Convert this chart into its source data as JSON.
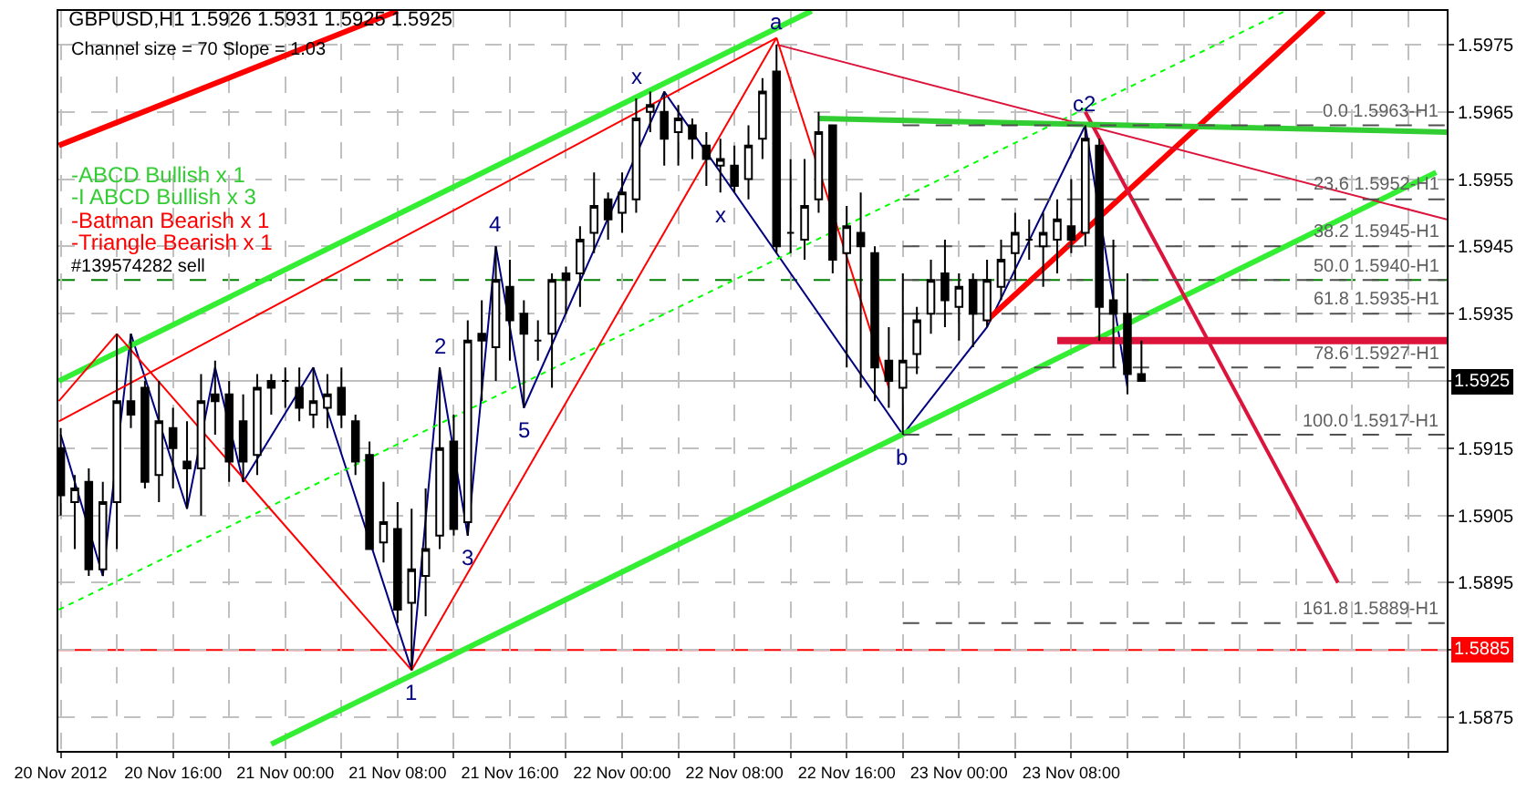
{
  "chart_data": {
    "type": "candlestick",
    "title": "GBPUSD,H1 1.5926 1.5931 1.5925 1.5925",
    "subtitle": "Channel size = 70 Slope = 1.03",
    "x": [
      "2012-11-20T08:00",
      "2012-11-20T09:00",
      "2012-11-20T10:00",
      "2012-11-20T11:00",
      "2012-11-20T12:00",
      "2012-11-20T13:00",
      "2012-11-20T14:00",
      "2012-11-20T15:00",
      "2012-11-20T16:00",
      "2012-11-20T17:00",
      "2012-11-20T18:00",
      "2012-11-20T19:00",
      "2012-11-20T20:00",
      "2012-11-20T21:00",
      "2012-11-20T22:00",
      "2012-11-20T23:00",
      "2012-11-21T00:00",
      "2012-11-21T01:00",
      "2012-11-21T02:00",
      "2012-11-21T03:00",
      "2012-11-21T04:00",
      "2012-11-21T05:00",
      "2012-11-21T06:00",
      "2012-11-21T07:00",
      "2012-11-21T08:00",
      "2012-11-21T09:00",
      "2012-11-21T10:00",
      "2012-11-21T11:00",
      "2012-11-21T12:00",
      "2012-11-21T13:00",
      "2012-11-21T14:00",
      "2012-11-21T15:00",
      "2012-11-21T16:00",
      "2012-11-21T17:00",
      "2012-11-21T18:00",
      "2012-11-21T19:00",
      "2012-11-21T20:00",
      "2012-11-21T21:00",
      "2012-11-21T22:00",
      "2012-11-21T23:00",
      "2012-11-22T00:00",
      "2012-11-22T01:00",
      "2012-11-22T02:00",
      "2012-11-22T03:00",
      "2012-11-22T04:00",
      "2012-11-22T05:00",
      "2012-11-22T06:00",
      "2012-11-22T07:00",
      "2012-11-22T08:00",
      "2012-11-22T09:00",
      "2012-11-22T10:00",
      "2012-11-22T11:00",
      "2012-11-22T12:00",
      "2012-11-22T13:00",
      "2012-11-22T14:00",
      "2012-11-22T15:00",
      "2012-11-22T16:00",
      "2012-11-22T17:00",
      "2012-11-22T18:00",
      "2012-11-22T19:00",
      "2012-11-22T20:00",
      "2012-11-22T21:00",
      "2012-11-22T22:00",
      "2012-11-22T23:00",
      "2012-11-23T00:00",
      "2012-11-23T01:00",
      "2012-11-23T02:00",
      "2012-11-23T03:00",
      "2012-11-23T04:00",
      "2012-11-23T05:00",
      "2012-11-23T06:00",
      "2012-11-23T07:00",
      "2012-11-23T08:00",
      "2012-11-23T09:00",
      "2012-11-23T10:00",
      "2012-11-23T11:00",
      "2012-11-23T12:00",
      "2012-11-23T13:00"
    ],
    "ohlc": [
      [
        1.5915,
        1.5918,
        1.5905,
        1.5908
      ],
      [
        1.5907,
        1.5911,
        1.59,
        1.5909
      ],
      [
        1.591,
        1.5912,
        1.5896,
        1.5897
      ],
      [
        1.5897,
        1.591,
        1.5896,
        1.5907
      ],
      [
        1.5907,
        1.5932,
        1.59,
        1.5922
      ],
      [
        1.5922,
        1.5932,
        1.5918,
        1.592
      ],
      [
        1.5924,
        1.5925,
        1.5909,
        1.591
      ],
      [
        1.5911,
        1.5925,
        1.5907,
        1.5919
      ],
      [
        1.5918,
        1.5921,
        1.5909,
        1.5915
      ],
      [
        1.5913,
        1.5919,
        1.5906,
        1.5912
      ],
      [
        1.5912,
        1.5926,
        1.5905,
        1.5922
      ],
      [
        1.5923,
        1.5928,
        1.5917,
        1.5922
      ],
      [
        1.5923,
        1.5925,
        1.591,
        1.5913
      ],
      [
        1.5919,
        1.5923,
        1.591,
        1.5913
      ],
      [
        1.5914,
        1.5926,
        1.5911,
        1.5924
      ],
      [
        1.5925,
        1.5926,
        1.592,
        1.5924
      ],
      [
        1.5925,
        1.5927,
        1.5921,
        1.5925
      ],
      [
        1.5924,
        1.5927,
        1.5919,
        1.5921
      ],
      [
        1.592,
        1.5927,
        1.5918,
        1.5922
      ],
      [
        1.5921,
        1.5926,
        1.5918,
        1.5923
      ],
      [
        1.5924,
        1.5927,
        1.5918,
        1.592
      ],
      [
        1.5919,
        1.592,
        1.5911,
        1.5913
      ],
      [
        1.5914,
        1.5916,
        1.59,
        1.59
      ],
      [
        1.5901,
        1.591,
        1.5898,
        1.5904
      ],
      [
        1.5903,
        1.5907,
        1.5889,
        1.5891
      ],
      [
        1.5892,
        1.5906,
        1.5882,
        1.5897
      ],
      [
        1.5896,
        1.5909,
        1.589,
        1.59
      ],
      [
        1.5902,
        1.5927,
        1.59,
        1.5915
      ],
      [
        1.5916,
        1.592,
        1.5902,
        1.5903
      ],
      [
        1.5904,
        1.5934,
        1.5902,
        1.5931
      ],
      [
        1.5932,
        1.5937,
        1.5922,
        1.5931
      ],
      [
        1.593,
        1.5945,
        1.5925,
        1.594
      ],
      [
        1.5939,
        1.5943,
        1.5928,
        1.5934
      ],
      [
        1.5935,
        1.5937,
        1.5921,
        1.5932
      ],
      [
        1.5931,
        1.5934,
        1.5928,
        1.5931
      ],
      [
        1.5932,
        1.5941,
        1.5924,
        1.594
      ],
      [
        1.5941,
        1.5942,
        1.5935,
        1.594
      ],
      [
        1.5941,
        1.5948,
        1.5936,
        1.5946
      ],
      [
        1.5947,
        1.5956,
        1.5944,
        1.5951
      ],
      [
        1.5952,
        1.5953,
        1.5946,
        1.5949
      ],
      [
        1.595,
        1.5956,
        1.5947,
        1.5953
      ],
      [
        1.5952,
        1.5967,
        1.595,
        1.5964
      ],
      [
        1.5965,
        1.5968,
        1.5962,
        1.5966
      ],
      [
        1.5965,
        1.5968,
        1.5957,
        1.5961
      ],
      [
        1.5962,
        1.5966,
        1.5957,
        1.5964
      ],
      [
        1.5963,
        1.5964,
        1.5958,
        1.5961
      ],
      [
        1.596,
        1.5962,
        1.5954,
        1.5958
      ],
      [
        1.5957,
        1.5961,
        1.5953,
        1.5958
      ],
      [
        1.5957,
        1.596,
        1.5953,
        1.5954
      ],
      [
        1.5955,
        1.5963,
        1.5952,
        1.596
      ],
      [
        1.5961,
        1.597,
        1.5958,
        1.5968
      ],
      [
        1.5971,
        1.5975,
        1.5944,
        1.5945
      ],
      [
        1.5947,
        1.5958,
        1.5944,
        1.5947
      ],
      [
        1.5946,
        1.5958,
        1.5943,
        1.5951
      ],
      [
        1.5952,
        1.5965,
        1.595,
        1.5962
      ],
      [
        1.5963,
        1.5963,
        1.5941,
        1.5943
      ],
      [
        1.5944,
        1.5951,
        1.5927,
        1.5948
      ],
      [
        1.5947,
        1.5953,
        1.5924,
        1.5945
      ],
      [
        1.5944,
        1.5945,
        1.5922,
        1.5927
      ],
      [
        1.5928,
        1.5933,
        1.5921,
        1.5925
      ],
      [
        1.5924,
        1.5941,
        1.5917,
        1.5928
      ],
      [
        1.5929,
        1.5936,
        1.5926,
        1.5934
      ],
      [
        1.5935,
        1.5943,
        1.5932,
        1.594
      ],
      [
        1.5941,
        1.5946,
        1.5933,
        1.5937
      ],
      [
        1.5936,
        1.5941,
        1.5931,
        1.5939
      ],
      [
        1.594,
        1.5941,
        1.593,
        1.5935
      ],
      [
        1.5934,
        1.5943,
        1.5933,
        1.594
      ],
      [
        1.5939,
        1.5946,
        1.5937,
        1.5943
      ],
      [
        1.5944,
        1.595,
        1.594,
        1.5947
      ],
      [
        1.5946,
        1.5949,
        1.5943,
        1.5946
      ],
      [
        1.5945,
        1.595,
        1.5939,
        1.5947
      ],
      [
        1.5946,
        1.5952,
        1.5941,
        1.5949
      ],
      [
        1.5948,
        1.5955,
        1.5944,
        1.5946
      ],
      [
        1.5947,
        1.5963,
        1.5945,
        1.5961
      ],
      [
        1.596,
        1.5961,
        1.5931,
        1.5936
      ],
      [
        1.5937,
        1.5946,
        1.5927,
        1.5935
      ],
      [
        1.5935,
        1.5941,
        1.5923,
        1.5926
      ],
      [
        1.5926,
        1.5931,
        1.5925,
        1.5925
      ]
    ],
    "series": [
      {
        "type": "line",
        "color": "#000080",
        "x": [
          "2012-11-20T08:00",
          "2012-11-20T11:00",
          "2012-11-20T13:00",
          "2012-11-20T17:00",
          "2012-11-20T19:00",
          "2012-11-20T21:00",
          "2012-11-21T02:00",
          "2012-11-21T09:00",
          "2012-11-21T11:00",
          "2012-11-21T13:00",
          "2012-11-21T15:00",
          "2012-11-21T17:00",
          "2012-11-22T03:00",
          "2012-11-22T20:00",
          "2012-11-23T02:00",
          "2012-11-23T09:00",
          "2012-11-23T12:00"
        ],
        "values": [
          1.5917,
          1.5896,
          1.5932,
          1.5906,
          1.5927,
          1.591,
          1.5927,
          1.5882,
          1.5927,
          1.5902,
          1.5945,
          1.5921,
          1.5968,
          1.5917,
          1.5933,
          1.5963,
          1.5924
        ]
      },
      {
        "type": "line",
        "color": "#33ee33",
        "x": [
          "2012-11-20T07:52",
          "2012-11-22T13:30"
        ],
        "values": [
          1.5925,
          1.598
        ]
      },
      {
        "type": "line",
        "color": "#33ee33",
        "x": [
          "2012-11-20T23:00",
          "2012-11-24T10:00"
        ],
        "values": [
          1.5871,
          1.5956
        ]
      },
      {
        "type": "line",
        "color": "#00ff00",
        "line_style": "dotted",
        "x": [
          "2012-11-20T07:52",
          "2012-11-23T23:15"
        ],
        "values": [
          1.5891,
          1.598
        ]
      },
      {
        "type": "line",
        "color": "#ff0000",
        "x": [
          "2012-11-20T07:52",
          "2012-11-21T08:00"
        ],
        "values": [
          1.596,
          1.598
        ]
      },
      {
        "type": "line",
        "color": "#ff0000",
        "x": [
          "2012-11-23T02:00",
          "2012-11-24T02:00"
        ],
        "values": [
          1.5934,
          1.598
        ]
      },
      {
        "type": "line",
        "color": "#dc143c",
        "x": [
          "2012-11-23T07:00",
          "2012-11-24T10:45"
        ],
        "values": [
          1.5931,
          1.5931
        ]
      },
      {
        "type": "line",
        "color": "#dc143c",
        "x": [
          "2012-11-23T09:00",
          "2012-11-24T03:00"
        ],
        "values": [
          1.5965,
          1.5895
        ]
      },
      {
        "type": "line",
        "color": "#dc143c",
        "x": [
          "2012-11-22T11:00",
          "2012-11-24T10:45"
        ],
        "values": [
          1.5975,
          1.5949
        ]
      },
      {
        "type": "line",
        "color": "#32cd32",
        "x": [
          "2012-11-22T14:00",
          "2012-11-24T10:45"
        ],
        "values": [
          1.5964,
          1.5962
        ]
      },
      {
        "type": "line",
        "color": "#ff0000",
        "x": [
          "2012-11-20T07:52",
          "2012-11-20T12:00"
        ],
        "values": [
          1.5922,
          1.5932
        ]
      },
      {
        "type": "line",
        "color": "#ff0000",
        "x": [
          "2012-11-20T07:52",
          "2012-11-22T11:00"
        ],
        "values": [
          1.5919,
          1.5976
        ]
      },
      {
        "type": "line",
        "color": "#ff0000",
        "x": [
          "2012-11-20T12:00",
          "2012-11-21T09:00"
        ],
        "values": [
          1.5932,
          1.5882
        ]
      },
      {
        "type": "line",
        "color": "#ff0000",
        "x": [
          "2012-11-21T09:00",
          "2012-11-22T11:00"
        ],
        "values": [
          1.5882,
          1.5976
        ]
      },
      {
        "type": "line",
        "color": "#ff0000",
        "x": [
          "2012-11-22T11:00",
          "2012-11-22T19:00"
        ],
        "values": [
          1.5976,
          1.5924
        ]
      },
      {
        "type": "line",
        "color": "#505050",
        "line_style": "dashed",
        "x": [
          "2012-11-22T20:00",
          "2012-11-24T10:45"
        ],
        "values": [
          1.5963,
          1.5963
        ]
      },
      {
        "type": "line",
        "color": "#505050",
        "line_style": "dashed",
        "x": [
          "2012-11-22T20:00",
          "2012-11-24T10:45"
        ],
        "values": [
          1.5952,
          1.5952
        ]
      },
      {
        "type": "line",
        "color": "#505050",
        "line_style": "dashed",
        "x": [
          "2012-11-22T20:00",
          "2012-11-24T10:45"
        ],
        "values": [
          1.5945,
          1.5945
        ]
      },
      {
        "type": "line",
        "color": "#505050",
        "line_style": "dashed",
        "x": [
          "2012-11-22T20:00",
          "2012-11-24T10:45"
        ],
        "values": [
          1.594,
          1.594
        ]
      },
      {
        "type": "line",
        "color": "#505050",
        "line_style": "dashed",
        "x": [
          "2012-11-22T20:00",
          "2012-11-24T10:45"
        ],
        "values": [
          1.5935,
          1.5935
        ]
      },
      {
        "type": "line",
        "color": "#505050",
        "line_style": "dashed",
        "x": [
          "2012-11-22T20:00",
          "2012-11-24T10:45"
        ],
        "values": [
          1.5927,
          1.5927
        ]
      },
      {
        "type": "line",
        "color": "#505050",
        "line_style": "dashed",
        "x": [
          "2012-11-22T20:00",
          "2012-11-24T10:45"
        ],
        "values": [
          1.5917,
          1.5917
        ]
      },
      {
        "type": "line",
        "color": "#505050",
        "line_style": "dashed",
        "x": [
          "2012-11-22T20:00",
          "2012-11-24T10:45"
        ],
        "values": [
          1.5889,
          1.5889
        ]
      }
    ],
    "ref_lines": [
      {
        "axis": "y",
        "value": 1.5885,
        "label": "1.5885",
        "color": "#ff0000"
      },
      {
        "axis": "y",
        "value": 1.5925,
        "label": "1.5925",
        "color": "#c0c0c0"
      },
      {
        "axis": "y",
        "value": 1.594,
        "label": "#139574282 sell",
        "color": "#008000",
        "line_style": "dashed"
      }
    ],
    "annotations": [
      "-ABCD Bullish x 1",
      "-I ABCD Bullish x 3",
      "-Batman Bearish x 1",
      "-Triangle Bearish x 1",
      {
        "text": "1",
        "x": "2012-11-21T09:00",
        "y": 1.5882
      },
      {
        "text": "2",
        "x": "2012-11-21T11:00",
        "y": 1.5927
      },
      {
        "text": "3",
        "x": "2012-11-21T13:00",
        "y": 1.5902
      },
      {
        "text": "4",
        "x": "2012-11-21T15:00",
        "y": 1.5945
      },
      {
        "text": "5",
        "x": "2012-11-21T17:00",
        "y": 1.5921
      },
      {
        "text": "x",
        "x": "2012-11-22T01:00",
        "y": 1.5967
      },
      {
        "text": "x",
        "x": "2012-11-22T07:00",
        "y": 1.5953
      },
      {
        "text": "a",
        "x": "2012-11-22T11:00",
        "y": 1.5975
      },
      {
        "text": "b",
        "x": "2012-11-22T20:00",
        "y": 1.5917
      },
      {
        "text": "c2",
        "x": "2012-11-23T09:00",
        "y": 1.5963
      },
      {
        "text": "0.0 1.5963-H1",
        "x": "2012-11-24T10:30",
        "y": 1.5963
      },
      {
        "text": "23.6 1.5952-H1",
        "x": "2012-11-24T10:30",
        "y": 1.5952
      },
      {
        "text": "38.2 1.5945-H1",
        "x": "2012-11-24T10:30",
        "y": 1.5945
      },
      {
        "text": "50.0 1.5940-H1",
        "x": "2012-11-24T10:30",
        "y": 1.594
      },
      {
        "text": "61.8 1.5935-H1",
        "x": "2012-11-24T10:30",
        "y": 1.5935
      },
      {
        "text": "78.6 1.5927-H1",
        "x": "2012-11-24T10:30",
        "y": 1.5927
      },
      {
        "text": "100.0 1.5917-H1",
        "x": "2012-11-24T10:30",
        "y": 1.5917
      },
      {
        "text": "161.8 1.5889-H1",
        "x": "2012-11-24T10:30",
        "y": 1.5889
      }
    ],
    "xlim": [
      "2012-11-20T07:50",
      "2012-11-24T10:45"
    ],
    "ylim": [
      1.587,
      1.598
    ],
    "yticks": [
      1.5875,
      1.5885,
      1.5895,
      1.5905,
      1.5915,
      1.5925,
      1.5935,
      1.5945,
      1.5955,
      1.5965,
      1.5975
    ],
    "xticks": [
      {
        "value": "2012-11-20T08:00",
        "label": "20 Nov 2012"
      },
      {
        "value": "2012-11-20T12:00",
        "label": null
      },
      {
        "value": "2012-11-20T16:00",
        "label": "20 Nov 16:00"
      },
      {
        "value": "2012-11-20T20:00",
        "label": null
      },
      {
        "value": "2012-11-21T00:00",
        "label": "21 Nov 00:00"
      },
      {
        "value": "2012-11-21T04:00",
        "label": null
      },
      {
        "value": "2012-11-21T08:00",
        "label": "21 Nov 08:00"
      },
      {
        "value": "2012-11-21T12:00",
        "label": null
      },
      {
        "value": "2012-11-21T16:00",
        "label": "21 Nov 16:00"
      },
      {
        "value": "2012-11-21T20:00",
        "label": null
      },
      {
        "value": "2012-11-22T00:00",
        "label": "22 Nov 00:00"
      },
      {
        "value": "2012-11-22T04:00",
        "label": null
      },
      {
        "value": "2012-11-22T08:00",
        "label": "22 Nov 08:00"
      },
      {
        "value": "2012-11-22T12:00",
        "label": null
      },
      {
        "value": "2012-11-22T16:00",
        "label": "22 Nov 16:00"
      },
      {
        "value": "2012-11-22T20:00",
        "label": null
      },
      {
        "value": "2012-11-23T00:00",
        "label": "23 Nov 00:00"
      },
      {
        "value": "2012-11-23T04:00",
        "label": null
      },
      {
        "value": "2012-11-23T08:00",
        "label": "23 Nov 08:00"
      },
      {
        "value": "2012-11-23T12:00",
        "label": null
      },
      {
        "value": "2012-11-23T16:00",
        "label": null
      },
      {
        "value": "2012-11-23T20:00",
        "label": null
      },
      {
        "value": "2012-11-24T00:00",
        "label": null
      },
      {
        "value": "2012-11-24T04:00",
        "label": null
      },
      {
        "value": "2012-11-24T08:00",
        "label": null
      }
    ],
    "grid": true
  }
}
